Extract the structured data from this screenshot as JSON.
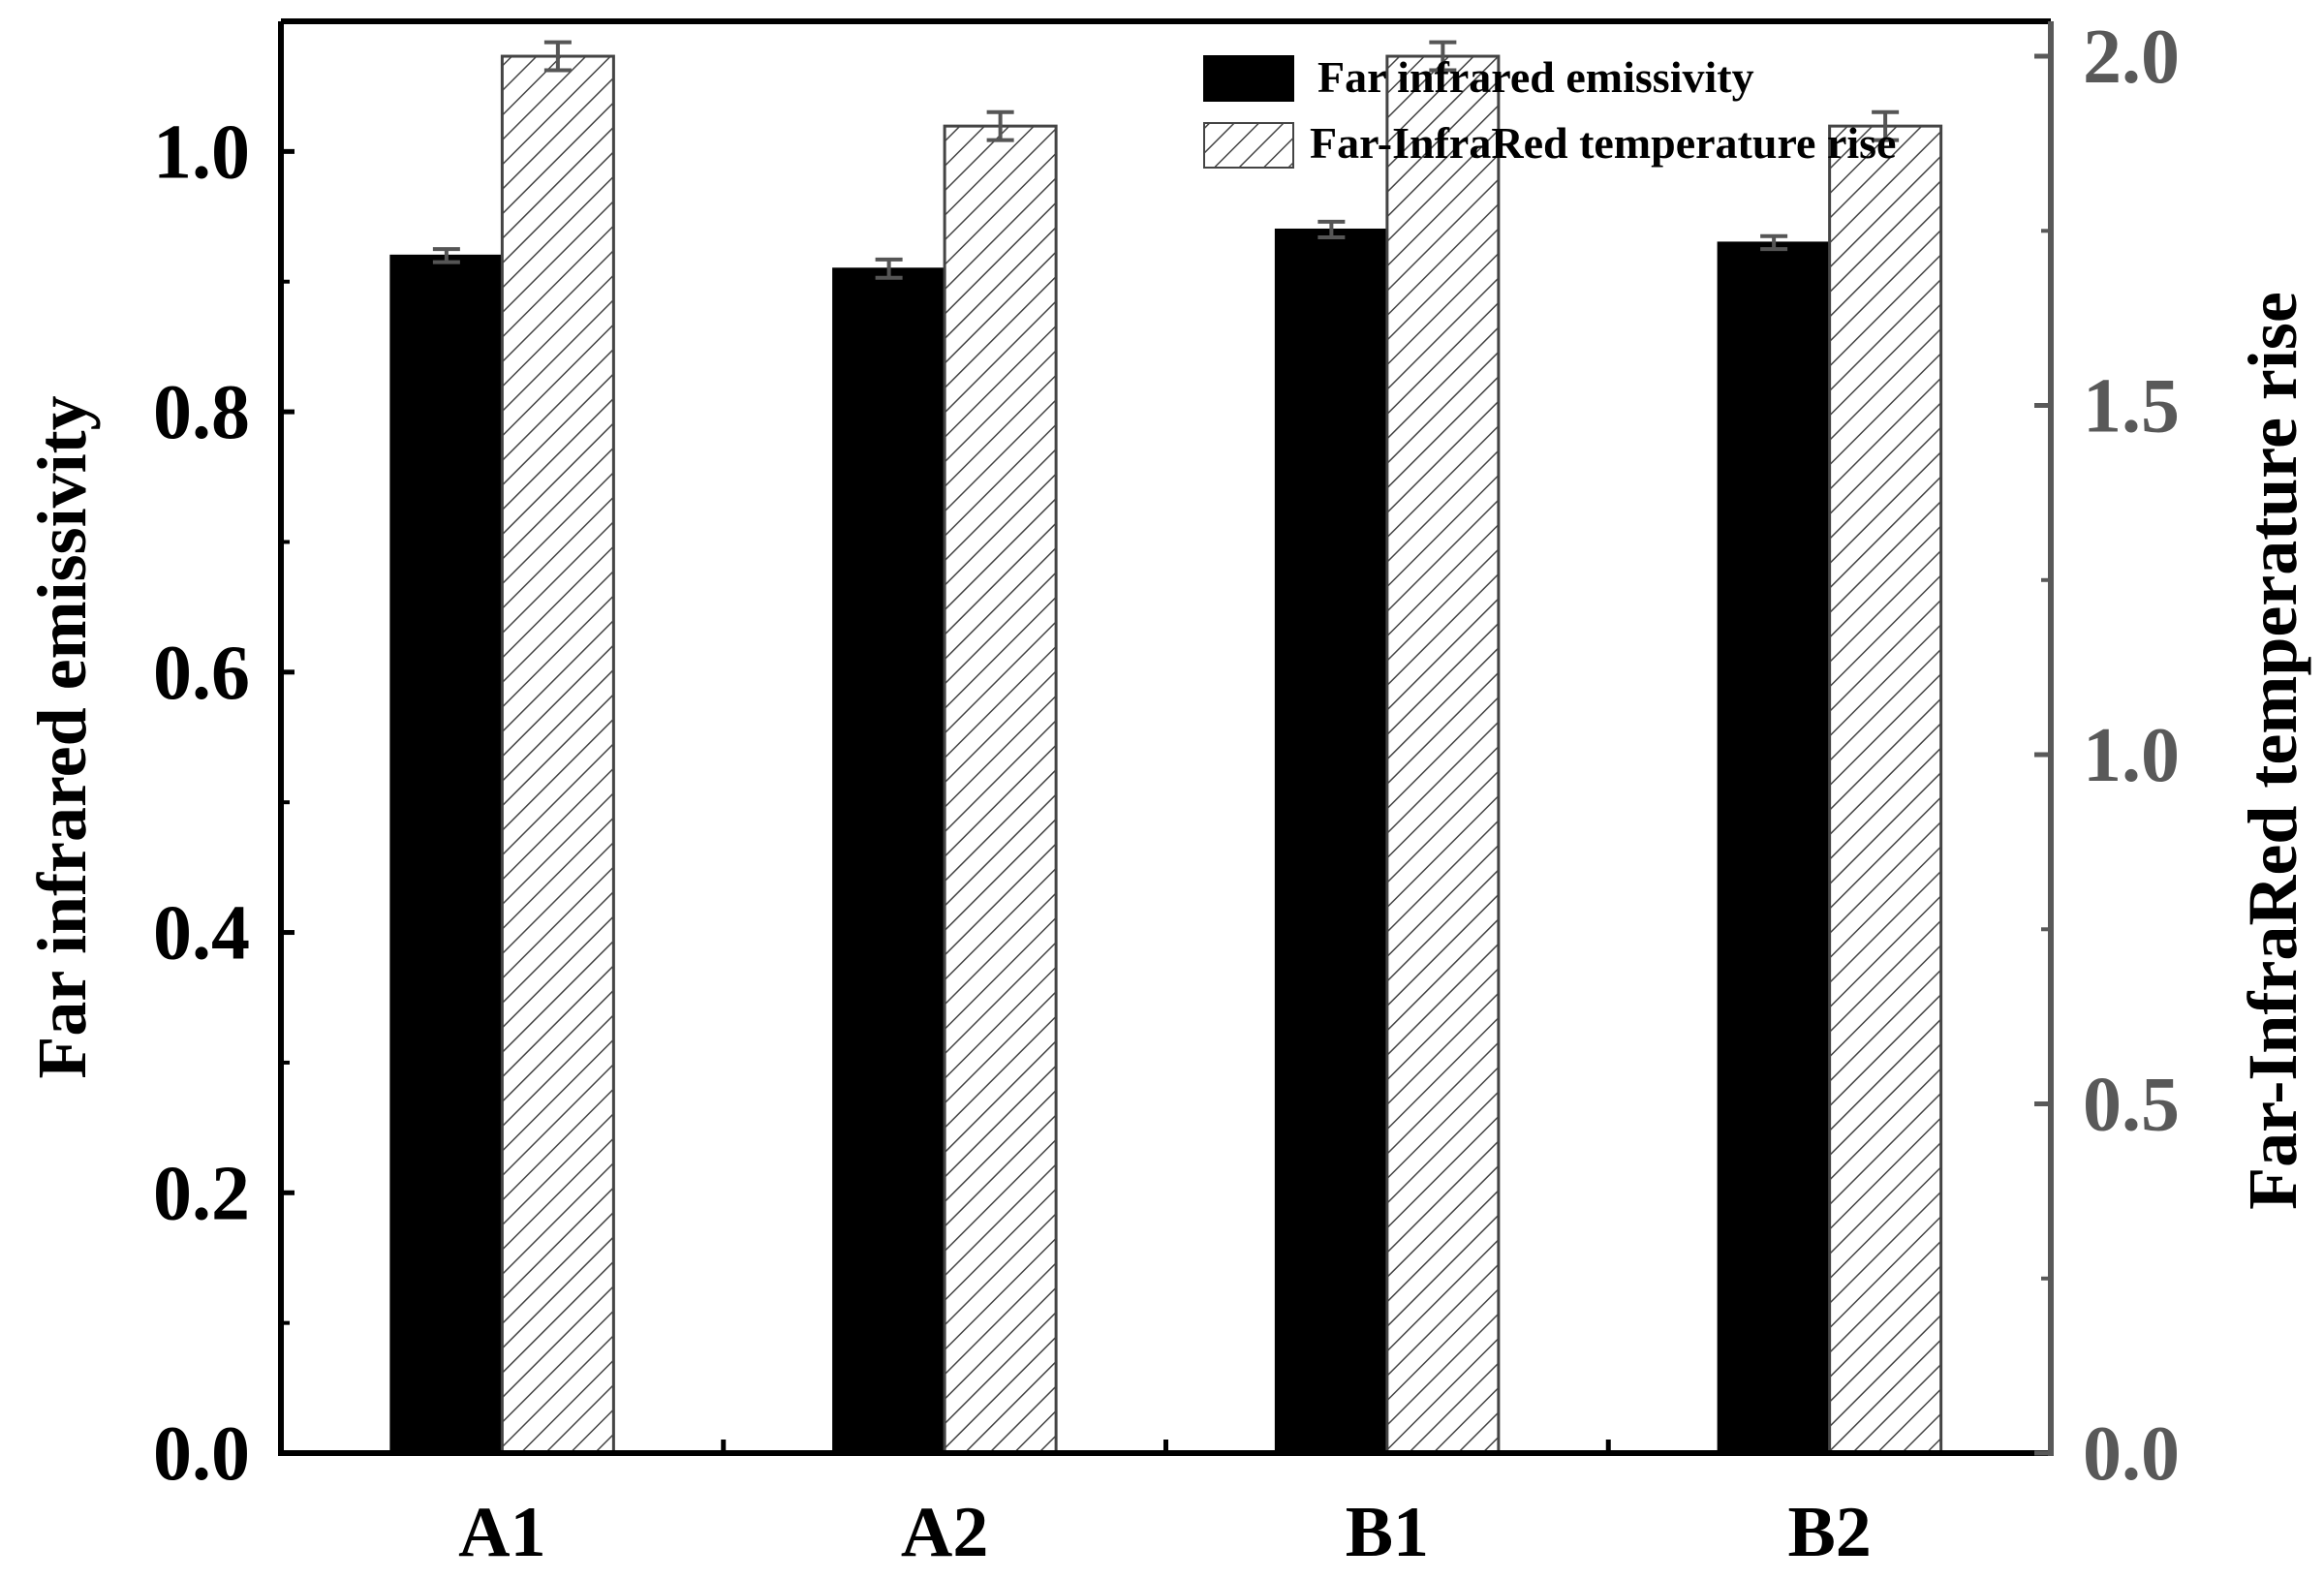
{
  "chart_data": {
    "type": "bar",
    "categories": [
      "A1",
      "A2",
      "B1",
      "B2"
    ],
    "series": [
      {
        "name": "Far infrared emissivity",
        "axis": "left",
        "fill": "solid",
        "values": [
          0.92,
          0.91,
          0.94,
          0.93
        ],
        "errors": [
          0.005,
          0.007,
          0.006,
          0.005
        ]
      },
      {
        "name": "Far-InfraRed temperature rise",
        "axis": "right",
        "fill": "hatched",
        "values": [
          2.0,
          1.9,
          2.0,
          1.9
        ],
        "errors": [
          0.02,
          0.02,
          0.02,
          0.02
        ]
      }
    ],
    "y_left": {
      "label": "Far infrared emissivity",
      "ylim": [
        0.0,
        1.1
      ],
      "ticks": [
        "0.0",
        "0.2",
        "0.4",
        "0.6",
        "0.8",
        "1.0"
      ],
      "tick_values": [
        0.0,
        0.2,
        0.4,
        0.6,
        0.8,
        1.0
      ]
    },
    "y_right": {
      "label": "Far-InfraRed temperature rise",
      "ylim": [
        0.0,
        2.05
      ],
      "ticks": [
        "0.0",
        "0.5",
        "1.0",
        "1.5",
        "2.0"
      ],
      "tick_values": [
        0.0,
        0.5,
        1.0,
        1.5,
        2.0
      ]
    },
    "legend": {
      "position": "top-right",
      "entries": [
        "Far infrared emissivity",
        "Far-InfraRed temperature rise"
      ]
    },
    "colors": {
      "left_axis": "#000000",
      "right_axis": "#595959",
      "bar_solid": "#000000",
      "hatch": "#444444",
      "error_bar": "#555555"
    },
    "grid": false
  }
}
